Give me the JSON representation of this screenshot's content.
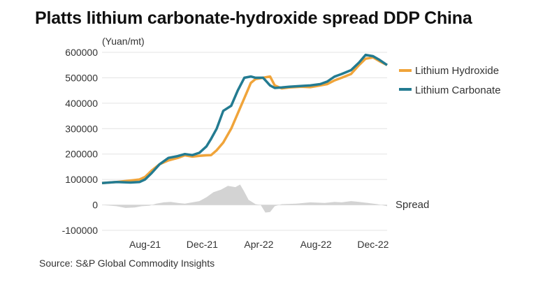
{
  "title": "Platts lithium carbonate-hydroxide spread DDP China",
  "source": "Source: S&P Global Commodity Insights",
  "chart_data": {
    "type": "line",
    "title": "Platts lithium carbonate-hydroxide spread DDP China",
    "ylabel": "(Yuan/mt)",
    "xlabel": "",
    "ylim": [
      -100000,
      600000
    ],
    "yticks": [
      600000,
      500000,
      400000,
      300000,
      200000,
      100000,
      0,
      -100000
    ],
    "ytick_labels": [
      "600000",
      "500000",
      "400000",
      "300000",
      "200000",
      "100000",
      "0",
      "-100000"
    ],
    "xtick_labels": [
      "Aug-21",
      "Dec-21",
      "Apr-22",
      "Aug-22",
      "Dec-22"
    ],
    "xtick_positions": [
      "2021-08-01",
      "2021-12-01",
      "2022-04-01",
      "2022-08-01",
      "2022-12-01"
    ],
    "x_range": [
      "2021-05-01",
      "2022-12-31"
    ],
    "grid": "horizontal",
    "legend_position": "right",
    "series": [
      {
        "name": "Lithium Hydroxide",
        "color": "#f0a43a",
        "points": [
          [
            "2021-05-01",
            86000
          ],
          [
            "2021-06-01",
            90000
          ],
          [
            "2021-07-01",
            96000
          ],
          [
            "2021-07-20",
            100000
          ],
          [
            "2021-08-01",
            110000
          ],
          [
            "2021-08-15",
            135000
          ],
          [
            "2021-09-01",
            160000
          ],
          [
            "2021-09-20",
            175000
          ],
          [
            "2021-10-10",
            185000
          ],
          [
            "2021-10-25",
            195000
          ],
          [
            "2021-11-10",
            190000
          ],
          [
            "2021-11-25",
            193000
          ],
          [
            "2021-12-10",
            195000
          ],
          [
            "2021-12-20",
            196000
          ],
          [
            "2022-01-01",
            215000
          ],
          [
            "2022-01-15",
            245000
          ],
          [
            "2022-02-01",
            300000
          ],
          [
            "2022-02-15",
            360000
          ],
          [
            "2022-03-01",
            420000
          ],
          [
            "2022-03-15",
            480000
          ],
          [
            "2022-03-25",
            495000
          ],
          [
            "2022-04-10",
            500000
          ],
          [
            "2022-04-25",
            505000
          ],
          [
            "2022-05-05",
            470000
          ],
          [
            "2022-05-20",
            458000
          ],
          [
            "2022-06-05",
            462000
          ],
          [
            "2022-07-01",
            465000
          ],
          [
            "2022-07-20",
            463000
          ],
          [
            "2022-08-10",
            470000
          ],
          [
            "2022-08-25",
            475000
          ],
          [
            "2022-09-10",
            490000
          ],
          [
            "2022-09-25",
            500000
          ],
          [
            "2022-10-15",
            515000
          ],
          [
            "2022-11-01",
            550000
          ],
          [
            "2022-11-15",
            575000
          ],
          [
            "2022-12-01",
            580000
          ],
          [
            "2022-12-15",
            565000
          ],
          [
            "2022-12-31",
            550000
          ]
        ]
      },
      {
        "name": "Lithium Carbonate",
        "color": "#237b91",
        "points": [
          [
            "2021-05-01",
            86000
          ],
          [
            "2021-06-01",
            90000
          ],
          [
            "2021-07-01",
            88000
          ],
          [
            "2021-07-20",
            90000
          ],
          [
            "2021-08-01",
            100000
          ],
          [
            "2021-08-15",
            125000
          ],
          [
            "2021-09-01",
            160000
          ],
          [
            "2021-09-20",
            185000
          ],
          [
            "2021-10-10",
            192000
          ],
          [
            "2021-10-25",
            200000
          ],
          [
            "2021-11-10",
            196000
          ],
          [
            "2021-11-25",
            205000
          ],
          [
            "2021-12-10",
            230000
          ],
          [
            "2021-12-20",
            260000
          ],
          [
            "2022-01-01",
            300000
          ],
          [
            "2022-01-15",
            370000
          ],
          [
            "2022-02-01",
            390000
          ],
          [
            "2022-02-15",
            450000
          ],
          [
            "2022-03-01",
            500000
          ],
          [
            "2022-03-15",
            505000
          ],
          [
            "2022-03-25",
            500000
          ],
          [
            "2022-04-10",
            500000
          ],
          [
            "2022-04-25",
            470000
          ],
          [
            "2022-05-05",
            460000
          ],
          [
            "2022-05-20",
            462000
          ],
          [
            "2022-06-05",
            465000
          ],
          [
            "2022-07-01",
            468000
          ],
          [
            "2022-07-20",
            470000
          ],
          [
            "2022-08-10",
            475000
          ],
          [
            "2022-08-25",
            485000
          ],
          [
            "2022-09-10",
            505000
          ],
          [
            "2022-09-25",
            515000
          ],
          [
            "2022-10-15",
            530000
          ],
          [
            "2022-11-01",
            560000
          ],
          [
            "2022-11-15",
            590000
          ],
          [
            "2022-12-01",
            585000
          ],
          [
            "2022-12-15",
            570000
          ],
          [
            "2022-12-31",
            550000
          ]
        ]
      },
      {
        "name": "Spread",
        "color": "#d3d3d3",
        "type": "area",
        "points": [
          [
            "2021-05-01",
            0
          ],
          [
            "2021-06-01",
            -5000
          ],
          [
            "2021-06-20",
            -12000
          ],
          [
            "2021-07-10",
            -10000
          ],
          [
            "2021-07-25",
            -5000
          ],
          [
            "2021-08-10",
            -3000
          ],
          [
            "2021-08-25",
            5000
          ],
          [
            "2021-09-10",
            10000
          ],
          [
            "2021-09-25",
            12000
          ],
          [
            "2021-10-10",
            8000
          ],
          [
            "2021-10-25",
            5000
          ],
          [
            "2021-11-10",
            10000
          ],
          [
            "2021-11-25",
            15000
          ],
          [
            "2021-12-10",
            30000
          ],
          [
            "2021-12-25",
            50000
          ],
          [
            "2022-01-10",
            60000
          ],
          [
            "2022-01-25",
            75000
          ],
          [
            "2022-02-10",
            70000
          ],
          [
            "2022-02-20",
            80000
          ],
          [
            "2022-02-28",
            55000
          ],
          [
            "2022-03-10",
            20000
          ],
          [
            "2022-03-25",
            3000
          ],
          [
            "2022-04-05",
            0
          ],
          [
            "2022-04-15",
            -30000
          ],
          [
            "2022-04-25",
            -28000
          ],
          [
            "2022-05-05",
            -5000
          ],
          [
            "2022-05-20",
            3000
          ],
          [
            "2022-06-20",
            5000
          ],
          [
            "2022-07-20",
            10000
          ],
          [
            "2022-08-20",
            8000
          ],
          [
            "2022-09-10",
            12000
          ],
          [
            "2022-09-25",
            10000
          ],
          [
            "2022-10-15",
            15000
          ],
          [
            "2022-11-01",
            12000
          ],
          [
            "2022-11-20",
            8000
          ],
          [
            "2022-12-10",
            3000
          ],
          [
            "2022-12-31",
            -5000
          ]
        ]
      }
    ],
    "annotations": [
      "Spread"
    ]
  }
}
